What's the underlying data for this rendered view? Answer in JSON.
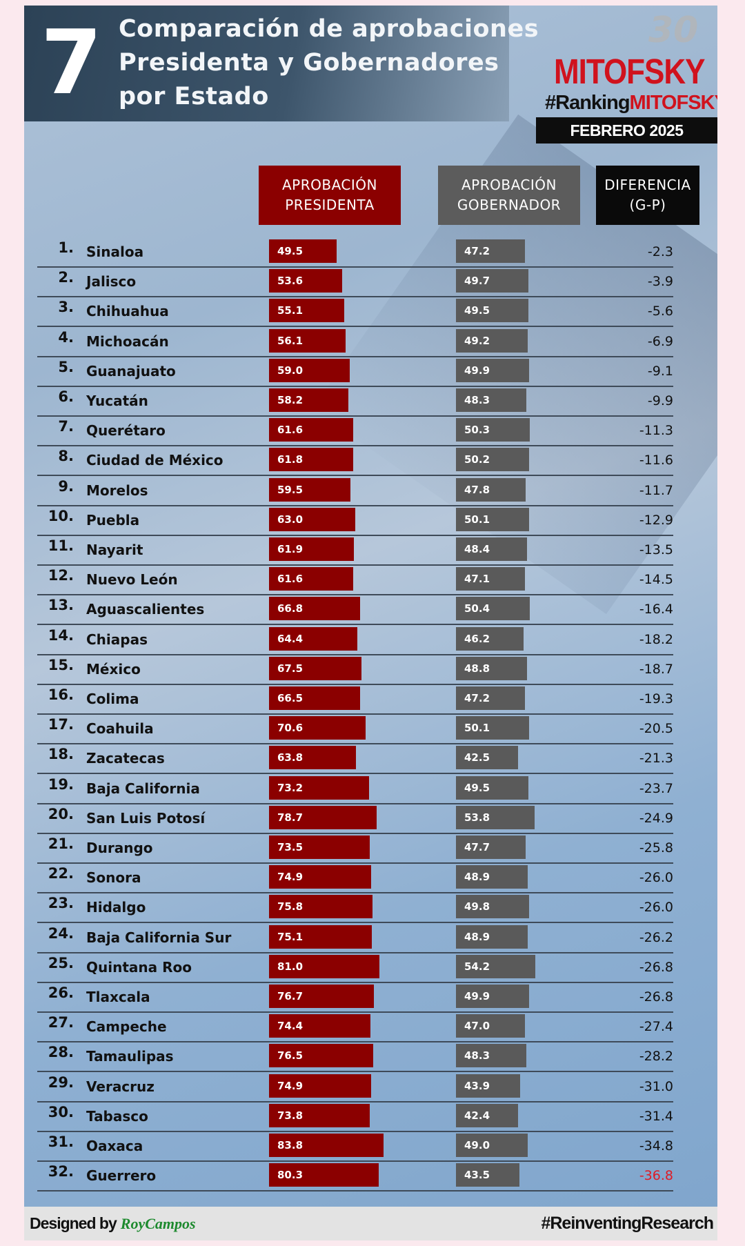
{
  "header": {
    "number": "7",
    "title_lines": [
      "Comparación de aprobaciones",
      "Presidenta y Gobernadores",
      "por Estado"
    ]
  },
  "logo": {
    "anniversary": "30",
    "brand": "MITOFSKY",
    "hashtag_prefix": "#Ranking",
    "hashtag_brand": "MITOFSKY",
    "date": "FEBRERO 2025"
  },
  "columns": {
    "presidenta": [
      "APROBACIÓN",
      "PRESIDENTA"
    ],
    "gobernador": [
      "APROBACIÓN",
      "GOBERNADOR"
    ],
    "diferencia": [
      "DIFERENCIA",
      "(G-P)"
    ]
  },
  "colors": {
    "presidenta": "#8b0000",
    "gobernador": "#5a5a5a",
    "last_diff": "#e01b24"
  },
  "chart_data": {
    "type": "bar",
    "rows": [
      {
        "rank": "1.",
        "state": "Sinaloa",
        "presidenta": 49.5,
        "gobernador": 47.2,
        "diferencia": "-2.3"
      },
      {
        "rank": "2.",
        "state": "Jalisco",
        "presidenta": 53.6,
        "gobernador": 49.7,
        "diferencia": "-3.9"
      },
      {
        "rank": "3.",
        "state": "Chihuahua",
        "presidenta": 55.1,
        "gobernador": 49.5,
        "diferencia": "-5.6"
      },
      {
        "rank": "4.",
        "state": "Michoacán",
        "presidenta": 56.1,
        "gobernador": 49.2,
        "diferencia": "-6.9"
      },
      {
        "rank": "5.",
        "state": "Guanajuato",
        "presidenta": 59.0,
        "gobernador": 49.9,
        "diferencia": "-9.1"
      },
      {
        "rank": "6.",
        "state": "Yucatán",
        "presidenta": 58.2,
        "gobernador": 48.3,
        "diferencia": "-9.9"
      },
      {
        "rank": "7.",
        "state": "Querétaro",
        "presidenta": 61.6,
        "gobernador": 50.3,
        "diferencia": "-11.3"
      },
      {
        "rank": "8.",
        "state": "Ciudad de México",
        "presidenta": 61.8,
        "gobernador": 50.2,
        "diferencia": "-11.6"
      },
      {
        "rank": "9.",
        "state": "Morelos",
        "presidenta": 59.5,
        "gobernador": 47.8,
        "diferencia": "-11.7"
      },
      {
        "rank": "10.",
        "state": "Puebla",
        "presidenta": 63.0,
        "gobernador": 50.1,
        "diferencia": "-12.9"
      },
      {
        "rank": "11.",
        "state": "Nayarit",
        "presidenta": 61.9,
        "gobernador": 48.4,
        "diferencia": "-13.5"
      },
      {
        "rank": "12.",
        "state": "Nuevo León",
        "presidenta": 61.6,
        "gobernador": 47.1,
        "diferencia": "-14.5"
      },
      {
        "rank": "13.",
        "state": "Aguascalientes",
        "presidenta": 66.8,
        "gobernador": 50.4,
        "diferencia": "-16.4"
      },
      {
        "rank": "14.",
        "state": "Chiapas",
        "presidenta": 64.4,
        "gobernador": 46.2,
        "diferencia": "-18.2"
      },
      {
        "rank": "15.",
        "state": "México",
        "presidenta": 67.5,
        "gobernador": 48.8,
        "diferencia": "-18.7"
      },
      {
        "rank": "16.",
        "state": "Colima",
        "presidenta": 66.5,
        "gobernador": 47.2,
        "diferencia": "-19.3"
      },
      {
        "rank": "17.",
        "state": "Coahuila",
        "presidenta": 70.6,
        "gobernador": 50.1,
        "diferencia": "-20.5"
      },
      {
        "rank": "18.",
        "state": "Zacatecas",
        "presidenta": 63.8,
        "gobernador": 42.5,
        "diferencia": "-21.3"
      },
      {
        "rank": "19.",
        "state": "Baja California",
        "presidenta": 73.2,
        "gobernador": 49.5,
        "diferencia": "-23.7"
      },
      {
        "rank": "20.",
        "state": "San Luis Potosí",
        "presidenta": 78.7,
        "gobernador": 53.8,
        "diferencia": "-24.9"
      },
      {
        "rank": "21.",
        "state": "Durango",
        "presidenta": 73.5,
        "gobernador": 47.7,
        "diferencia": "-25.8"
      },
      {
        "rank": "22.",
        "state": "Sonora",
        "presidenta": 74.9,
        "gobernador": 48.9,
        "diferencia": "-26.0"
      },
      {
        "rank": "23.",
        "state": "Hidalgo",
        "presidenta": 75.8,
        "gobernador": 49.8,
        "diferencia": "-26.0"
      },
      {
        "rank": "24.",
        "state": "Baja California Sur",
        "presidenta": 75.1,
        "gobernador": 48.9,
        "diferencia": "-26.2"
      },
      {
        "rank": "25.",
        "state": "Quintana Roo",
        "presidenta": 81.0,
        "gobernador": 54.2,
        "diferencia": "-26.8"
      },
      {
        "rank": "26.",
        "state": "Tlaxcala",
        "presidenta": 76.7,
        "gobernador": 49.9,
        "diferencia": "-26.8"
      },
      {
        "rank": "27.",
        "state": "Campeche",
        "presidenta": 74.4,
        "gobernador": 47.0,
        "diferencia": "-27.4"
      },
      {
        "rank": "28.",
        "state": "Tamaulipas",
        "presidenta": 76.5,
        "gobernador": 48.3,
        "diferencia": "-28.2"
      },
      {
        "rank": "29.",
        "state": "Veracruz",
        "presidenta": 74.9,
        "gobernador": 43.9,
        "diferencia": "-31.0"
      },
      {
        "rank": "30.",
        "state": "Tabasco",
        "presidenta": 73.8,
        "gobernador": 42.4,
        "diferencia": "-31.4"
      },
      {
        "rank": "31.",
        "state": "Oaxaca",
        "presidenta": 83.8,
        "gobernador": 49.0,
        "diferencia": "-34.8"
      },
      {
        "rank": "32.",
        "state": "Guerrero",
        "presidenta": 80.3,
        "gobernador": 43.5,
        "diferencia": "-36.8"
      }
    ]
  },
  "footer": {
    "designed_by": "Designed by",
    "designer": "RoyCampos",
    "hashtag": "#ReinventingResearch"
  }
}
